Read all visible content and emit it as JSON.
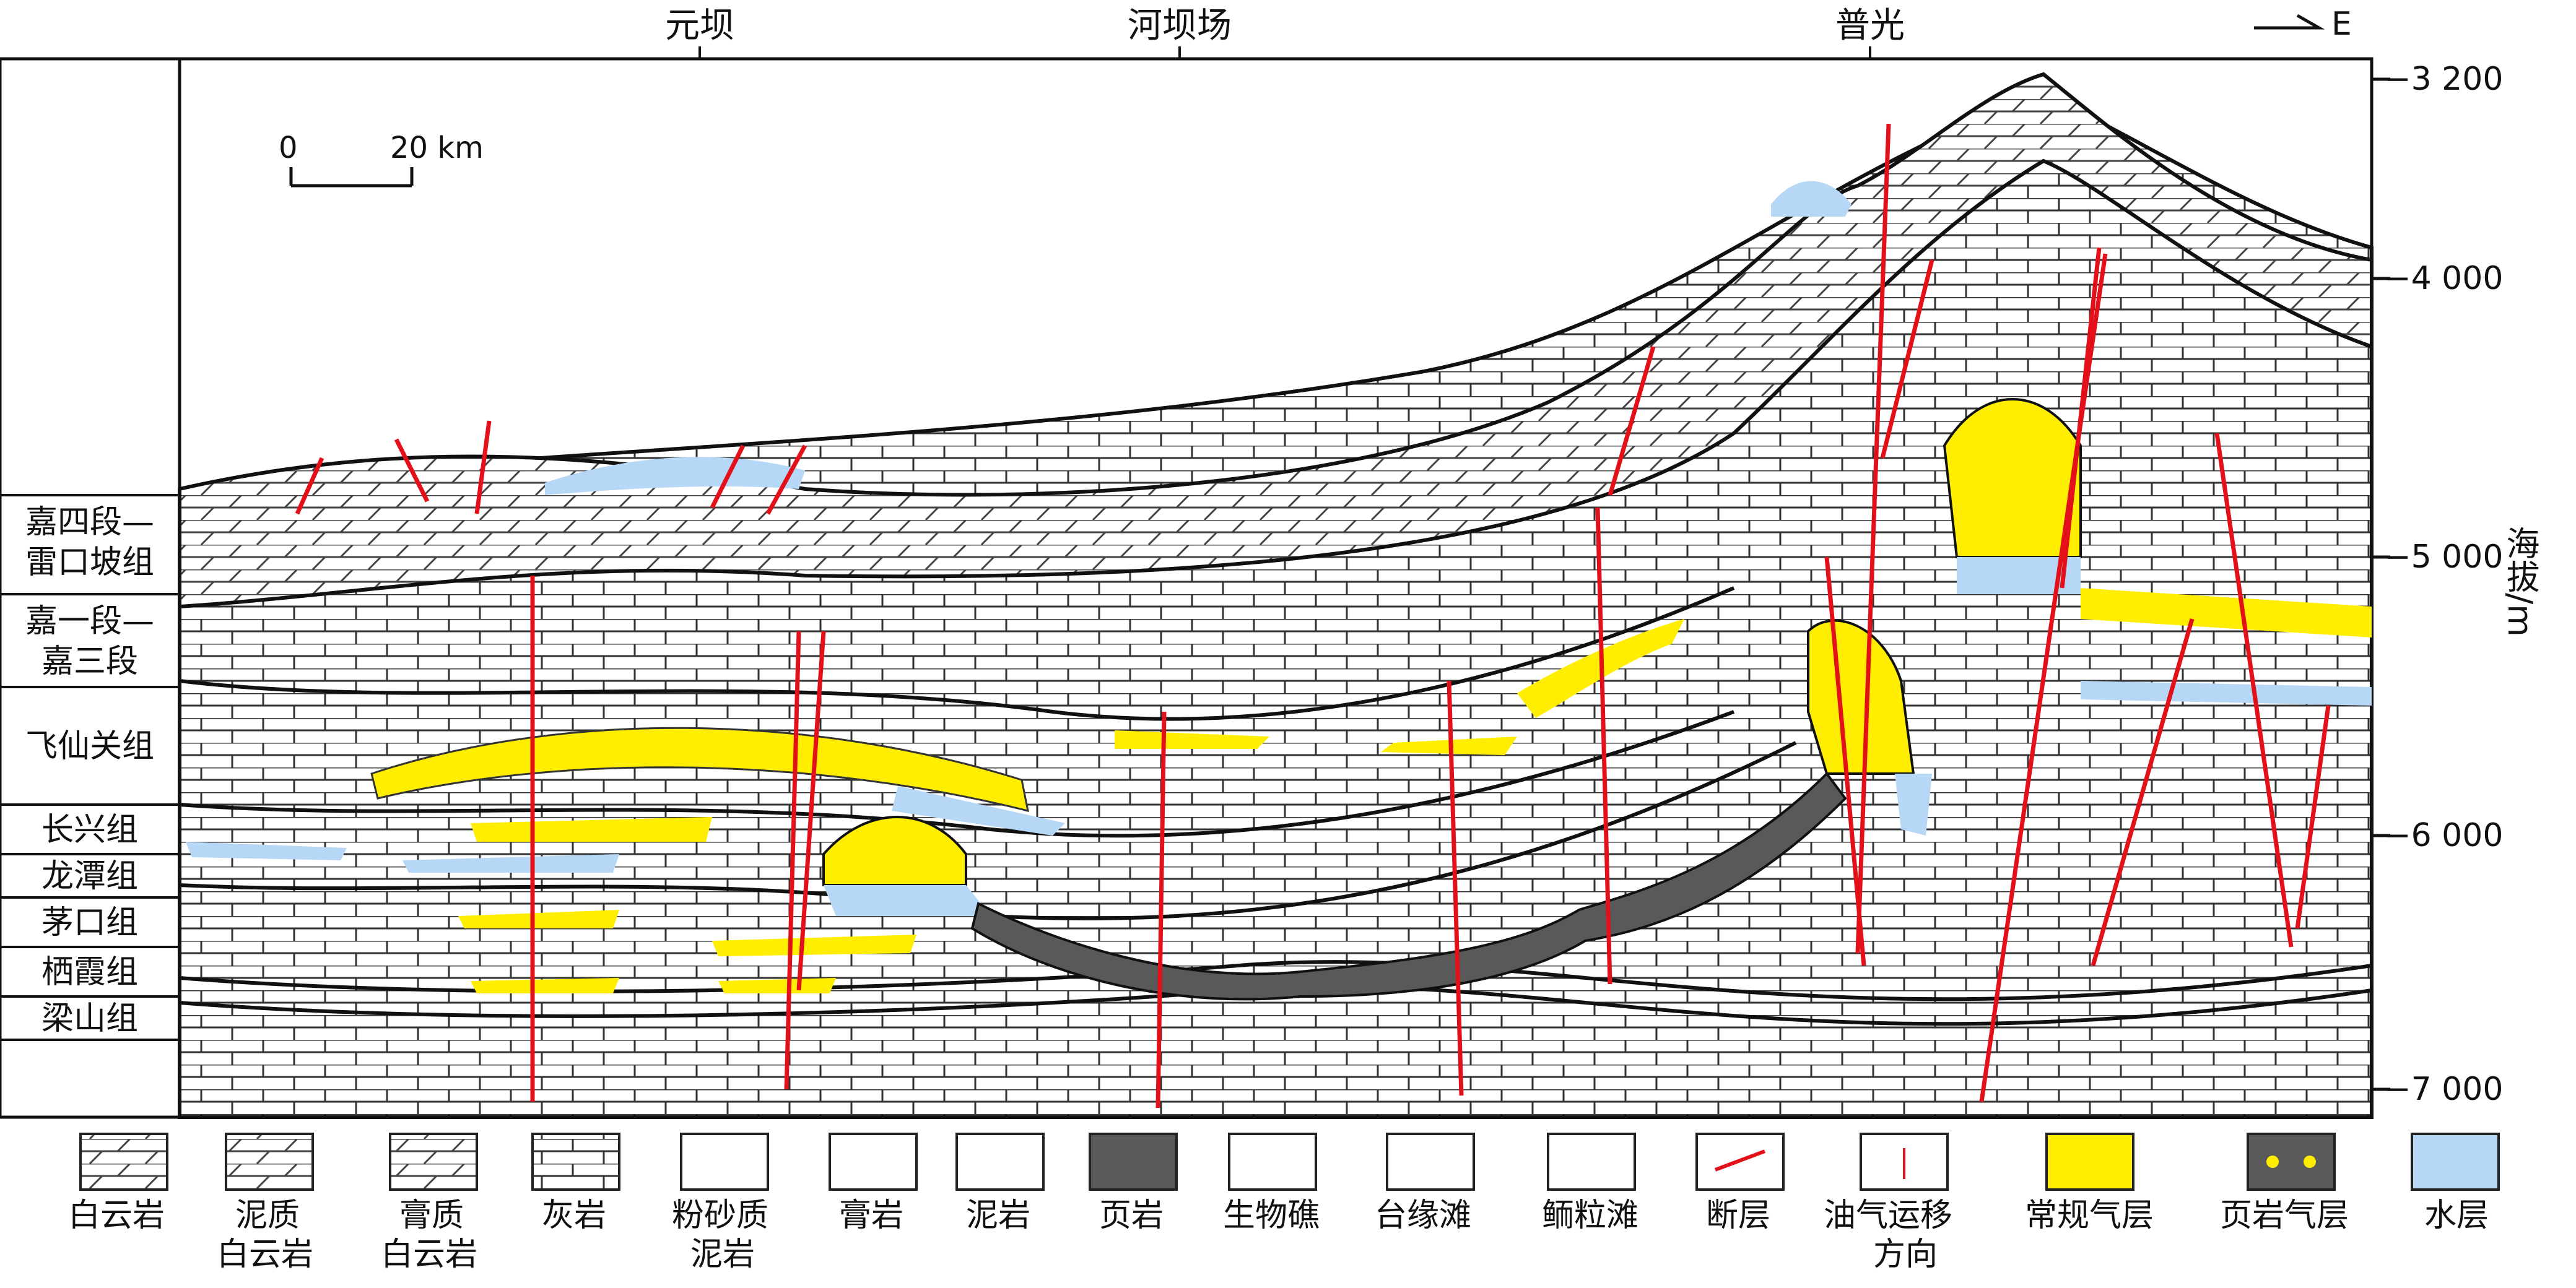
{
  "locations": {
    "yuanba": "元坝",
    "heba": "河坝场",
    "puguang": "普光"
  },
  "direction": "E",
  "scale": {
    "zero": "0",
    "dist": "20 km"
  },
  "y_axis": {
    "label": "海拔/m",
    "t1": "−3 200",
    "t2": "−4 000",
    "t3": "−5 000",
    "t4": "−6 000",
    "t5": "−7 000"
  },
  "formations": {
    "f1a": "嘉四段—",
    "f1b": "雷口坡组",
    "f2a": "嘉一段—",
    "f2b": "嘉三段",
    "f3": "飞仙关组",
    "f4": "长兴组",
    "f5": "龙潭组",
    "f6": "茅口组",
    "f7": "栖霞组",
    "f8": "梁山组"
  },
  "legend": {
    "dolomite": "白云岩",
    "muddy_dolomite_a": "泥质",
    "muddy_dolomite_b": "白云岩",
    "gypsum_dolomite_a": "膏质",
    "gypsum_dolomite_b": "白云岩",
    "limestone": "灰岩",
    "silty_mudstone_a": "粉砂质",
    "silty_mudstone_b": "泥岩",
    "gypsum": "膏岩",
    "mudstone": "泥岩",
    "shale": "页岩",
    "reef": "生物礁",
    "platform_shoal": "台缘滩",
    "oolite": "鲕粒滩",
    "fault": "断层",
    "migration_a": "油气运移",
    "migration_b": "方向",
    "conv_gas": "常规气层",
    "shale_gas": "页岩气层",
    "water": "水层"
  },
  "colors": {
    "gas": "#ffee00",
    "water": "#b6d7f5",
    "fault": "#e3101a",
    "shale": "#595959"
  }
}
